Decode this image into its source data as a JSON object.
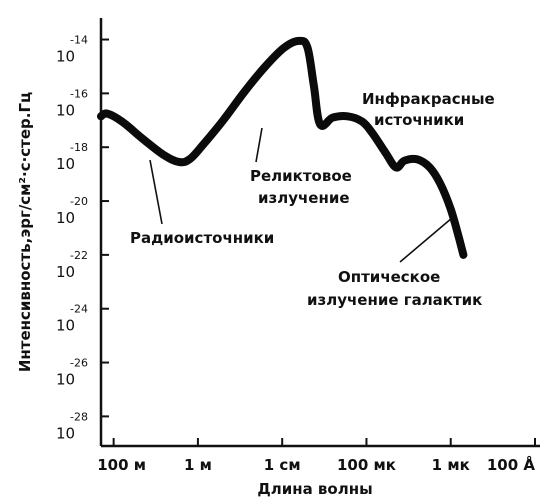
{
  "chart_data": {
    "type": "line",
    "xlabel": "Длина волны",
    "ylabel": "Интенсивность,эрг/см²·с·стер.Гц",
    "x_scale": "log",
    "y_scale": "log",
    "x_unit": "m",
    "x_ticks": [
      {
        "label": "100 м",
        "value": 100
      },
      {
        "label": "1 м",
        "value": 1
      },
      {
        "label": "1 см",
        "value": 0.01
      },
      {
        "label": "100 мк",
        "value": 0.0001
      },
      {
        "label": "1 мк",
        "value": 1e-06
      },
      {
        "label": "100 Å",
        "value": 1e-08
      }
    ],
    "y_ticks": [
      {
        "base": "10",
        "exp": "-14",
        "value": -14
      },
      {
        "base": "10",
        "exp": "-16",
        "value": -16
      },
      {
        "base": "10",
        "exp": "-18",
        "value": -18
      },
      {
        "base": "10",
        "exp": "-20",
        "value": -20
      },
      {
        "base": "10",
        "exp": "-22",
        "value": -22
      },
      {
        "base": "10",
        "exp": "-24",
        "value": -24
      },
      {
        "base": "10",
        "exp": "-26",
        "value": -26
      },
      {
        "base": "10",
        "exp": "-28",
        "value": -28
      }
    ],
    "xlim_log10": [
      2.3,
      -8
    ],
    "ylim_log10": [
      -29.1,
      -13.2
    ],
    "series": [
      {
        "points_log10": [
          [
            2.3,
            -16.85
          ],
          [
            2.15,
            -16.75
          ],
          [
            1.8,
            -17.05
          ],
          [
            1.3,
            -17.7
          ],
          [
            0.8,
            -18.3
          ],
          [
            0.45,
            -18.55
          ],
          [
            0.2,
            -18.45
          ],
          [
            -0.1,
            -17.95
          ],
          [
            -0.6,
            -17.0
          ],
          [
            -1.1,
            -15.95
          ],
          [
            -1.6,
            -15.0
          ],
          [
            -2.05,
            -14.3
          ],
          [
            -2.4,
            -14.05
          ],
          [
            -2.6,
            -14.3
          ],
          [
            -2.75,
            -15.7
          ],
          [
            -2.9,
            -17.15
          ],
          [
            -3.2,
            -16.9
          ],
          [
            -3.55,
            -16.85
          ],
          [
            -3.9,
            -17.05
          ],
          [
            -4.15,
            -17.5
          ],
          [
            -4.45,
            -18.2
          ],
          [
            -4.7,
            -18.75
          ],
          [
            -4.9,
            -18.5
          ],
          [
            -5.2,
            -18.45
          ],
          [
            -5.5,
            -18.75
          ],
          [
            -5.75,
            -19.35
          ],
          [
            -6.0,
            -20.3
          ],
          [
            -6.2,
            -21.4
          ],
          [
            -6.3,
            -22.0
          ]
        ]
      }
    ],
    "annotations": [
      {
        "text": "Радиоисточники"
      },
      {
        "text": "Реликтовое"
      },
      {
        "text": "излучение"
      },
      {
        "text": "Инфракрасные"
      },
      {
        "text": "источники"
      },
      {
        "text": "Оптическое"
      },
      {
        "text": "излучение галактик"
      }
    ]
  }
}
